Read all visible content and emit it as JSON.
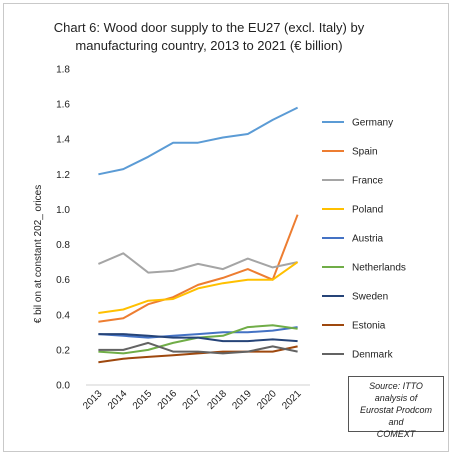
{
  "chart_data": {
    "type": "line",
    "title_lines": [
      "Chart 6: Wood door supply to the EU27 (excl. Italy) by",
      "manufacturing country, 2013 to 2021 (€ billion)"
    ],
    "ylabel": "€ bil on at constant 202_ orices",
    "xlabel": "",
    "x": [
      "2013",
      "2014",
      "2015",
      "2016",
      "2017",
      "2018",
      "2019",
      "2020",
      "2021"
    ],
    "ylim": [
      0,
      1.8
    ],
    "yticks": [
      "0.0",
      "0.2",
      "0.4",
      "0.6",
      "0.8",
      "1.0",
      "1.2",
      "1.4",
      "1.6",
      "1.8"
    ],
    "grid": false,
    "legend_placement": "right",
    "series": [
      {
        "name": "Germany",
        "color": "#5b9bd5",
        "values": [
          1.2,
          1.23,
          1.3,
          1.38,
          1.38,
          1.41,
          1.43,
          1.51,
          1.58
        ]
      },
      {
        "name": "Spain",
        "color": "#ed7d31",
        "values": [
          0.36,
          0.38,
          0.46,
          0.5,
          0.57,
          0.61,
          0.66,
          0.6,
          0.97
        ]
      },
      {
        "name": "France",
        "color": "#a5a5a5",
        "values": [
          0.69,
          0.75,
          0.64,
          0.65,
          0.69,
          0.66,
          0.72,
          0.67,
          0.7
        ]
      },
      {
        "name": "Poland",
        "color": "#ffc000",
        "values": [
          0.41,
          0.43,
          0.48,
          0.49,
          0.55,
          0.58,
          0.6,
          0.6,
          0.7
        ]
      },
      {
        "name": "Austria",
        "color": "#4472c4",
        "values": [
          0.29,
          0.28,
          0.27,
          0.28,
          0.29,
          0.3,
          0.3,
          0.31,
          0.33
        ]
      },
      {
        "name": "Netherlands",
        "color": "#70ad47",
        "values": [
          0.19,
          0.18,
          0.2,
          0.24,
          0.27,
          0.28,
          0.33,
          0.34,
          0.32
        ]
      },
      {
        "name": "Sweden",
        "color": "#264478",
        "values": [
          0.29,
          0.29,
          0.28,
          0.27,
          0.27,
          0.25,
          0.25,
          0.26,
          0.25
        ]
      },
      {
        "name": "Estonia",
        "color": "#9e480e",
        "values": [
          0.13,
          0.15,
          0.16,
          0.17,
          0.18,
          0.19,
          0.19,
          0.19,
          0.22
        ]
      },
      {
        "name": "Denmark",
        "color": "#636363",
        "values": [
          0.2,
          0.2,
          0.24,
          0.19,
          0.19,
          0.18,
          0.19,
          0.22,
          0.19
        ]
      }
    ],
    "source_lines": [
      "Source: ITTO analysis of",
      "Eurostat Prodcom and",
      "COMEXT"
    ]
  }
}
